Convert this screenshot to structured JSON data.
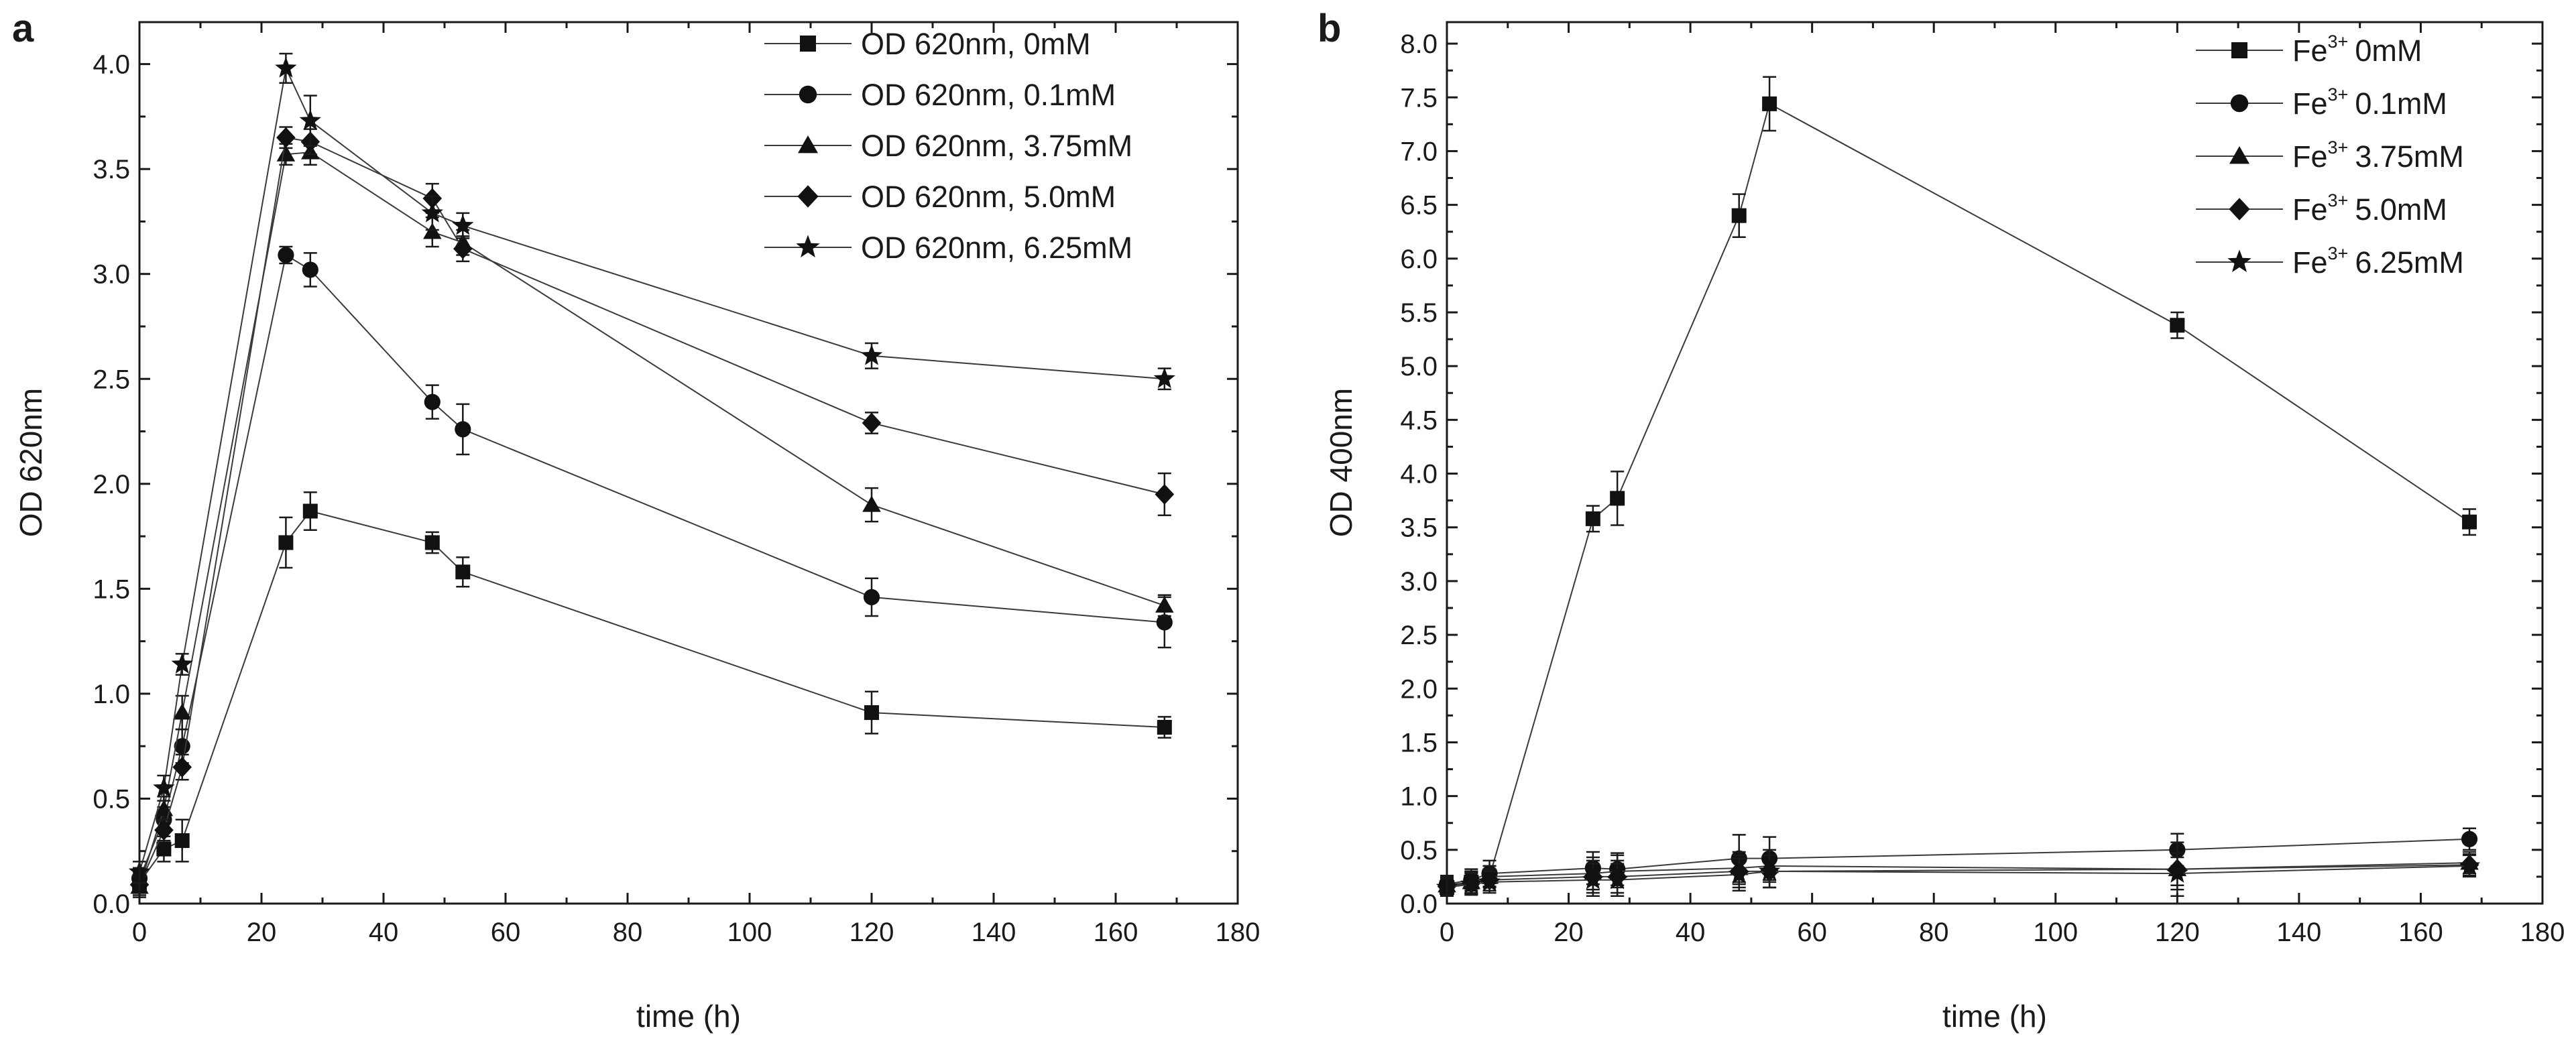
{
  "chart_data": [
    {
      "type": "line",
      "panel": "a",
      "xlabel": "time (h)",
      "ylabel": "OD 620nm",
      "xlim": [
        0,
        180
      ],
      "ylim": [
        0,
        4.2
      ],
      "xticks": [
        0,
        20,
        40,
        60,
        80,
        100,
        120,
        140,
        160,
        180
      ],
      "yticks": [
        0.0,
        0.5,
        1.0,
        1.5,
        2.0,
        2.5,
        3.0,
        3.5,
        4.0
      ],
      "xtick_labels": [
        "0",
        "20",
        "40",
        "60",
        "80",
        "100",
        "120",
        "140",
        "160",
        "180"
      ],
      "ytick_labels": [
        "0.0",
        "0.5",
        "1.0",
        "1.5",
        "2.0",
        "2.5",
        "3.0",
        "3.5",
        "4.0"
      ],
      "legend_position": "top-right",
      "series": [
        {
          "name": "OD 620nm, 0mM",
          "label": "OD 620nm, 0mM",
          "marker": "square",
          "x": [
            0,
            4,
            7,
            24,
            28,
            48,
            53,
            120,
            168
          ],
          "y": [
            0.1,
            0.26,
            0.3,
            1.72,
            1.87,
            1.72,
            1.58,
            0.91,
            0.84
          ],
          "err": [
            0.05,
            0.06,
            0.1,
            0.12,
            0.09,
            0.05,
            0.07,
            0.1,
            0.05
          ]
        },
        {
          "name": "OD 620nm, 0.1mM",
          "label": "OD 620nm, 0.1mM",
          "marker": "circle",
          "x": [
            0,
            4,
            7,
            24,
            28,
            48,
            53,
            120,
            168
          ],
          "y": [
            0.12,
            0.4,
            0.75,
            3.09,
            3.02,
            2.39,
            2.26,
            1.46,
            1.34
          ],
          "err": [
            0.05,
            0.06,
            0.08,
            0.04,
            0.08,
            0.08,
            0.12,
            0.09,
            0.12
          ]
        },
        {
          "name": "OD 620nm, 3.75mM",
          "label": "OD 620nm, 3.75mM",
          "marker": "triangle",
          "x": [
            0,
            4,
            7,
            24,
            28,
            48,
            53,
            120,
            168
          ],
          "y": [
            0.08,
            0.45,
            0.91,
            3.57,
            3.58,
            3.2,
            3.15,
            1.9,
            1.42
          ],
          "err": [
            0.05,
            0.06,
            0.08,
            0.05,
            0.06,
            0.07,
            0.06,
            0.08,
            0.05
          ]
        },
        {
          "name": "OD 620nm, 5.0mM",
          "label": "OD 620nm, 5.0mM",
          "marker": "diamond",
          "x": [
            0,
            4,
            7,
            24,
            28,
            48,
            53,
            120,
            168
          ],
          "y": [
            0.09,
            0.35,
            0.65,
            3.65,
            3.63,
            3.36,
            3.12,
            2.29,
            1.95
          ],
          "err": [
            0.05,
            0.05,
            0.06,
            0.05,
            0.06,
            0.07,
            0.06,
            0.05,
            0.1
          ]
        },
        {
          "name": "OD 620nm, 6.25mM",
          "label": "OD 620nm, 6.25mM",
          "marker": "star",
          "x": [
            0,
            4,
            7,
            24,
            28,
            48,
            53,
            120,
            168
          ],
          "y": [
            0.15,
            0.55,
            1.14,
            3.98,
            3.73,
            3.29,
            3.23,
            2.61,
            2.5
          ],
          "err": [
            0.05,
            0.06,
            0.05,
            0.07,
            0.12,
            0.08,
            0.06,
            0.06,
            0.05
          ]
        }
      ]
    },
    {
      "type": "line",
      "panel": "b",
      "xlabel": "time (h)",
      "ylabel": "OD 400nm",
      "xlim": [
        0,
        180
      ],
      "ylim": [
        0,
        8.2
      ],
      "xticks": [
        0,
        20,
        40,
        60,
        80,
        100,
        120,
        140,
        160,
        180
      ],
      "yticks": [
        0.0,
        0.5,
        1.0,
        1.5,
        2.0,
        2.5,
        3.0,
        3.5,
        4.0,
        4.5,
        5.0,
        5.5,
        6.0,
        6.5,
        7.0,
        7.5,
        8.0
      ],
      "xtick_labels": [
        "0",
        "20",
        "40",
        "60",
        "80",
        "100",
        "120",
        "140",
        "160",
        "180"
      ],
      "ytick_labels": [
        "0.0",
        "0.5",
        "1.0",
        "1.5",
        "2.0",
        "2.5",
        "3.0",
        "3.5",
        "4.0",
        "4.5",
        "5.0",
        "5.5",
        "6.0",
        "6.5",
        "7.0",
        "7.5",
        "8.0"
      ],
      "legend_position": "top-right",
      "series": [
        {
          "name": "Fe3+ 0mM",
          "label": "0mM",
          "marker": "square",
          "x": [
            0,
            4,
            7,
            24,
            28,
            48,
            53,
            120,
            168
          ],
          "y": [
            0.15,
            0.2,
            0.25,
            3.58,
            3.77,
            6.4,
            7.44,
            5.38,
            3.55
          ],
          "err": [
            0.08,
            0.1,
            0.1,
            0.12,
            0.25,
            0.2,
            0.25,
            0.12,
            0.12
          ]
        },
        {
          "name": "Fe3+ 0.1mM",
          "label": "0.1mM",
          "marker": "circle",
          "x": [
            0,
            4,
            7,
            24,
            28,
            48,
            53,
            120,
            168
          ],
          "y": [
            0.18,
            0.22,
            0.28,
            0.33,
            0.32,
            0.42,
            0.42,
            0.5,
            0.6
          ],
          "err": [
            0.08,
            0.1,
            0.12,
            0.15,
            0.15,
            0.22,
            0.2,
            0.15,
            0.1
          ]
        },
        {
          "name": "Fe3+ 3.75mM",
          "label": "3.75mM",
          "marker": "triangle",
          "x": [
            0,
            4,
            7,
            24,
            28,
            48,
            53,
            120,
            168
          ],
          "y": [
            0.17,
            0.2,
            0.25,
            0.28,
            0.3,
            0.33,
            0.35,
            0.32,
            0.38
          ],
          "err": [
            0.08,
            0.1,
            0.1,
            0.15,
            0.15,
            0.15,
            0.15,
            0.25,
            0.1
          ]
        },
        {
          "name": "Fe3+ 5.0mM",
          "label": "5.0mM",
          "marker": "diamond",
          "x": [
            0,
            4,
            7,
            24,
            28,
            48,
            53,
            120,
            168
          ],
          "y": [
            0.16,
            0.19,
            0.22,
            0.25,
            0.25,
            0.3,
            0.3,
            0.32,
            0.36
          ],
          "err": [
            0.08,
            0.1,
            0.1,
            0.15,
            0.15,
            0.15,
            0.15,
            0.15,
            0.1
          ]
        },
        {
          "name": "Fe3+ 6.25mM",
          "label": "6.25mM",
          "marker": "star",
          "x": [
            0,
            4,
            7,
            24,
            28,
            48,
            53,
            120,
            168
          ],
          "y": [
            0.15,
            0.18,
            0.2,
            0.22,
            0.22,
            0.27,
            0.3,
            0.28,
            0.35
          ],
          "err": [
            0.08,
            0.1,
            0.1,
            0.15,
            0.15,
            0.15,
            0.15,
            0.15,
            0.1
          ]
        }
      ]
    }
  ],
  "legend_b": {
    "ion_base": "Fe",
    "ion_charge": "3+"
  },
  "colors": {
    "ink": "#1a1a1a",
    "line": "#3a3a3a",
    "marker": "#111111",
    "background": "#ffffff"
  }
}
